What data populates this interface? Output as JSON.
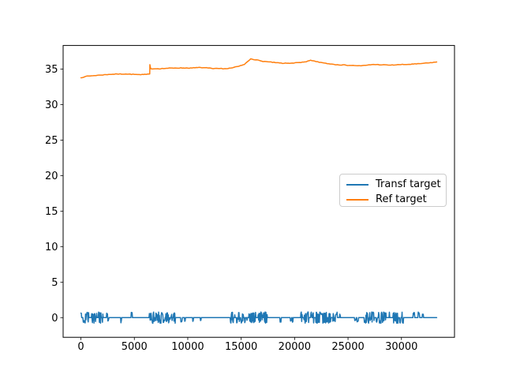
{
  "figure": {
    "background": "#ffffff"
  },
  "chart_data": {
    "type": "line",
    "title": "",
    "xlabel": "",
    "ylabel": "",
    "grid": false,
    "xlim": [
      -1666,
      34966
    ],
    "ylim": [
      -2.77,
      38.32
    ],
    "x_ticks": [
      0,
      5000,
      10000,
      15000,
      20000,
      25000,
      30000
    ],
    "y_ticks": [
      0,
      5,
      10,
      15,
      20,
      25,
      30,
      35
    ],
    "legend": {
      "position": "center-right",
      "border_color": "#cccccc"
    },
    "series": [
      {
        "name": "Transf target",
        "color": "#1f77b4",
        "x_range": [
          0,
          33300
        ],
        "baseline": 0,
        "noise_amplitude": 0.8,
        "noise_clusters": [
          {
            "start": 0,
            "end": 2200,
            "mode": "dense"
          },
          {
            "start": 2200,
            "end": 5000,
            "mode": "sparse"
          },
          {
            "start": 5000,
            "end": 6400,
            "mode": "flat"
          },
          {
            "start": 6400,
            "end": 8850,
            "mode": "dense"
          },
          {
            "start": 8850,
            "end": 11900,
            "mode": "sparse"
          },
          {
            "start": 11900,
            "end": 14000,
            "mode": "flat"
          },
          {
            "start": 14000,
            "end": 17500,
            "mode": "dense"
          },
          {
            "start": 17500,
            "end": 20500,
            "mode": "sparse"
          },
          {
            "start": 20500,
            "end": 24000,
            "mode": "dense"
          },
          {
            "start": 24000,
            "end": 26500,
            "mode": "sparse"
          },
          {
            "start": 26500,
            "end": 30350,
            "mode": "dense"
          },
          {
            "start": 30350,
            "end": 32100,
            "mode": "sparse_up"
          },
          {
            "start": 32100,
            "end": 33300,
            "mode": "flat"
          }
        ]
      },
      {
        "name": "Ref target",
        "color": "#ff7f0e",
        "points": [
          [
            0,
            33.78
          ],
          [
            400,
            33.95
          ],
          [
            1000,
            34.05
          ],
          [
            1800,
            34.15
          ],
          [
            2600,
            34.25
          ],
          [
            3400,
            34.3
          ],
          [
            4200,
            34.3
          ],
          [
            5000,
            34.25
          ],
          [
            5600,
            34.2
          ],
          [
            6100,
            34.25
          ],
          [
            6440,
            34.3
          ],
          [
            6455,
            35.62
          ],
          [
            6530,
            35.05
          ],
          [
            7200,
            35.05
          ],
          [
            8000,
            35.1
          ],
          [
            8800,
            35.15
          ],
          [
            9600,
            35.15
          ],
          [
            10400,
            35.15
          ],
          [
            11200,
            35.22
          ],
          [
            11900,
            35.15
          ],
          [
            12400,
            35.05
          ],
          [
            13000,
            35.08
          ],
          [
            13600,
            35.05
          ],
          [
            14200,
            35.18
          ],
          [
            14800,
            35.4
          ],
          [
            15300,
            35.65
          ],
          [
            15900,
            36.45
          ],
          [
            16400,
            36.3
          ],
          [
            16900,
            36.12
          ],
          [
            17500,
            36.02
          ],
          [
            18200,
            35.9
          ],
          [
            19000,
            35.8
          ],
          [
            19800,
            35.85
          ],
          [
            20600,
            35.92
          ],
          [
            21100,
            36.02
          ],
          [
            21500,
            36.25
          ],
          [
            22000,
            36.05
          ],
          [
            22600,
            35.9
          ],
          [
            23200,
            35.75
          ],
          [
            24000,
            35.62
          ],
          [
            24800,
            35.55
          ],
          [
            25600,
            35.5
          ],
          [
            26200,
            35.45
          ],
          [
            26800,
            35.55
          ],
          [
            27400,
            35.65
          ],
          [
            28200,
            35.6
          ],
          [
            29000,
            35.55
          ],
          [
            29800,
            35.62
          ],
          [
            30600,
            35.65
          ],
          [
            31400,
            35.72
          ],
          [
            32000,
            35.8
          ],
          [
            32600,
            35.87
          ],
          [
            33300,
            36.0
          ]
        ]
      }
    ]
  }
}
